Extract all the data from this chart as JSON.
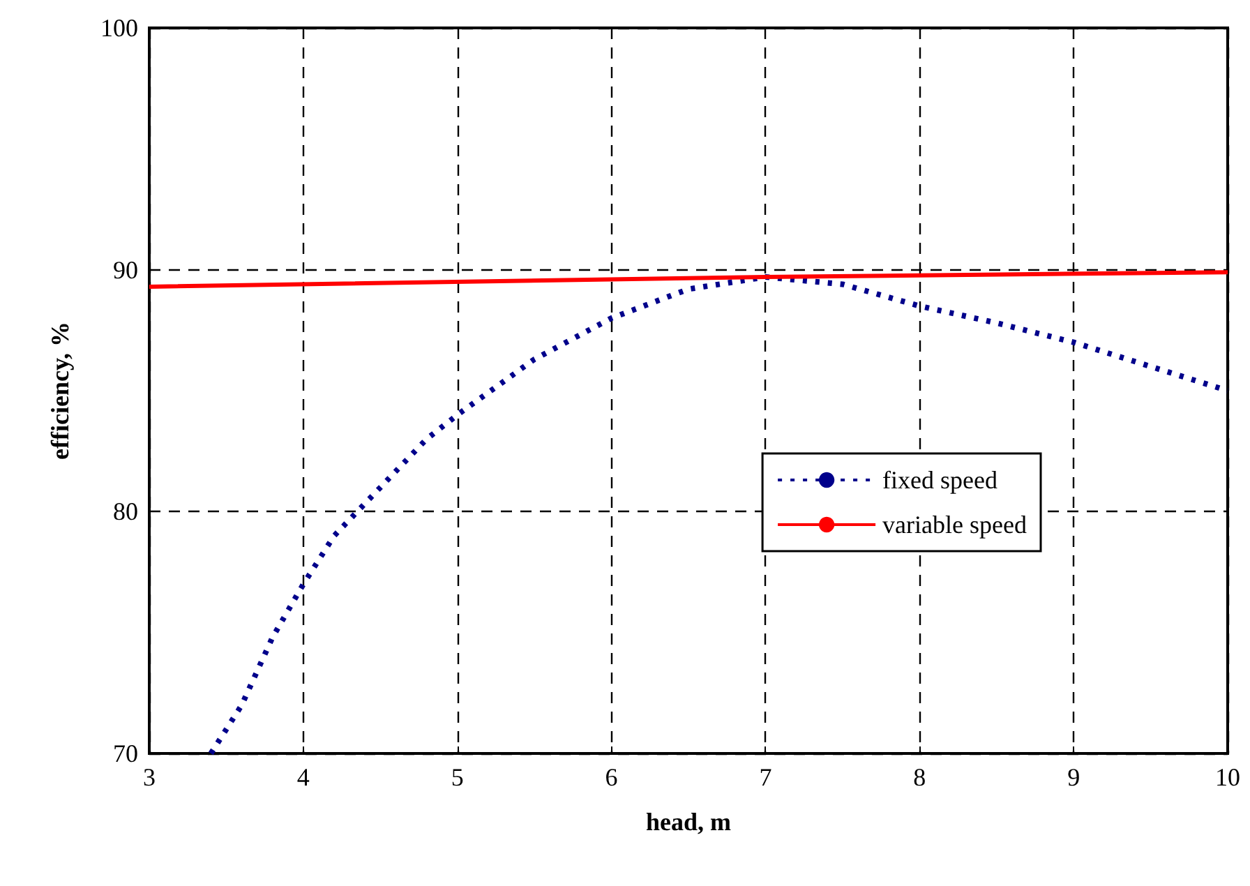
{
  "chart_data": {
    "type": "line",
    "xlabel": "head, m",
    "ylabel": "efficiency, %",
    "xlim": [
      3,
      10
    ],
    "xticks": [
      3,
      4,
      5,
      6,
      7,
      8,
      9,
      10
    ],
    "ylim": [
      70,
      100
    ],
    "yticks": [
      70,
      80,
      90,
      100
    ],
    "grid": true,
    "legend": "right",
    "marker": "none",
    "series": [
      {
        "name": "fixed speed",
        "color": "#00008b",
        "line_style": "dotted",
        "x": [
          3.4,
          3.6,
          3.8,
          4,
          4.2,
          4.5,
          4.8,
          5,
          5.5,
          6,
          6.5,
          7,
          7.5,
          8,
          8.5,
          9,
          9.5,
          10
        ],
        "values": [
          70,
          72,
          74.8,
          77,
          79,
          81,
          83,
          84,
          86.3,
          88,
          89.2,
          89.7,
          89.4,
          88.5,
          87.8,
          87,
          86,
          85
        ]
      },
      {
        "name": "variable speed",
        "color": "#ff0000",
        "line_style": "solid",
        "x": [
          3,
          7,
          10
        ],
        "values": [
          89.3,
          89.7,
          89.9
        ]
      }
    ]
  }
}
